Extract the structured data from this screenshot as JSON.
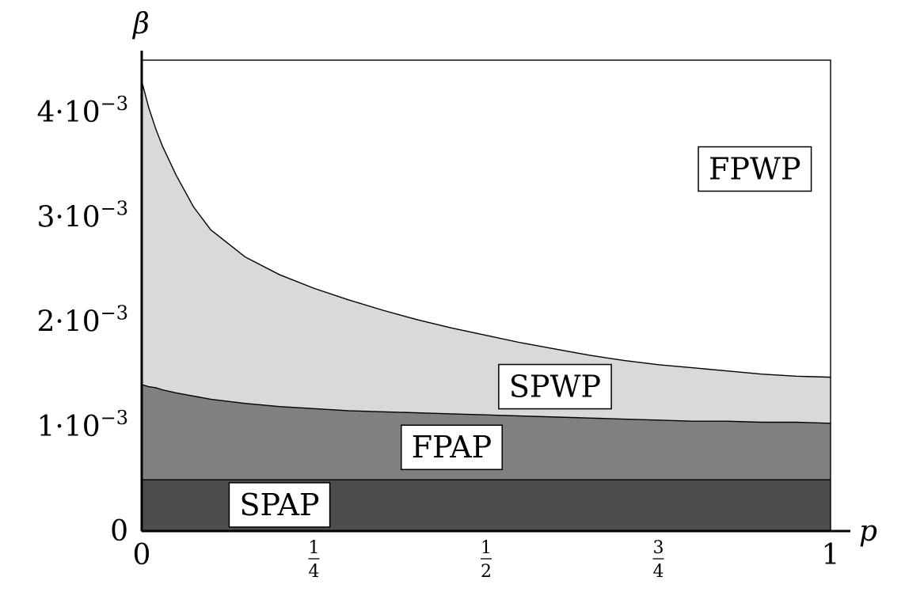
{
  "chart_data": {
    "type": "area",
    "xlabel": "p",
    "ylabel": "β",
    "xlim": [
      0,
      1
    ],
    "ylim": [
      0,
      0.0045
    ],
    "x_ticks": [
      {
        "value": 0,
        "label": "0"
      },
      {
        "value": 0.25,
        "num": "1",
        "den": "4"
      },
      {
        "value": 0.5,
        "num": "1",
        "den": "2"
      },
      {
        "value": 0.75,
        "num": "3",
        "den": "4"
      },
      {
        "value": 1,
        "label": "1"
      }
    ],
    "y_ticks": [
      {
        "value": 0,
        "coef": "0"
      },
      {
        "value": 0.001,
        "coef": "1",
        "base": "10",
        "exp": "−3"
      },
      {
        "value": 0.002,
        "coef": "2",
        "base": "10",
        "exp": "−3"
      },
      {
        "value": 0.003,
        "coef": "3",
        "base": "10",
        "exp": "−3"
      },
      {
        "value": 0.004,
        "coef": "4",
        "base": "10",
        "exp": "−3"
      }
    ],
    "x": [
      0,
      0.01,
      0.02,
      0.03,
      0.05,
      0.075,
      0.1,
      0.15,
      0.2,
      0.25,
      0.3,
      0.35,
      0.4,
      0.45,
      0.5,
      0.55,
      0.6,
      0.65,
      0.7,
      0.75,
      0.8,
      0.85,
      0.9,
      0.95,
      1
    ],
    "boundaries": [
      {
        "name": "SPAP",
        "values": [
          0.00049,
          0.00049,
          0.00049,
          0.00049,
          0.00049,
          0.00049,
          0.00049,
          0.00049,
          0.00049,
          0.00049,
          0.00049,
          0.00049,
          0.00049,
          0.00049,
          0.00049,
          0.00049,
          0.00049,
          0.00049,
          0.00049,
          0.00049,
          0.00049,
          0.00049,
          0.00049,
          0.00049,
          0.00049
        ]
      },
      {
        "name": "FPAP",
        "values": [
          0.0014,
          0.00138,
          0.00137,
          0.00135,
          0.00132,
          0.00129,
          0.00126,
          0.00122,
          0.00119,
          0.00117,
          0.00115,
          0.00114,
          0.00113,
          0.00112,
          0.00111,
          0.0011,
          0.00109,
          0.00108,
          0.00107,
          0.00106,
          0.00105,
          0.00105,
          0.00104,
          0.00104,
          0.00103
        ]
      },
      {
        "name": "SPWP",
        "values": [
          0.0043,
          0.00405,
          0.00385,
          0.00368,
          0.0034,
          0.0031,
          0.00288,
          0.00262,
          0.00245,
          0.00232,
          0.00221,
          0.00211,
          0.00202,
          0.00194,
          0.00187,
          0.0018,
          0.00174,
          0.00168,
          0.00163,
          0.00159,
          0.00156,
          0.00153,
          0.0015,
          0.00148,
          0.00147
        ]
      }
    ],
    "regions": [
      {
        "name": "SPAP",
        "label": "SPAP",
        "color": "#4d4d4d",
        "label_x": 0.2,
        "label_y": 0.00025
      },
      {
        "name": "FPAP",
        "label": "FPAP",
        "color": "#808080",
        "label_x": 0.45,
        "label_y": 0.0008
      },
      {
        "name": "SPWP",
        "label": "SPWP",
        "color": "#d9d9d9",
        "label_x": 0.6,
        "label_y": 0.00138
      },
      {
        "name": "FPWP",
        "label": "FPWP",
        "color": "#ffffff",
        "label_x": 0.89,
        "label_y": 0.00346
      }
    ],
    "grid": false
  }
}
